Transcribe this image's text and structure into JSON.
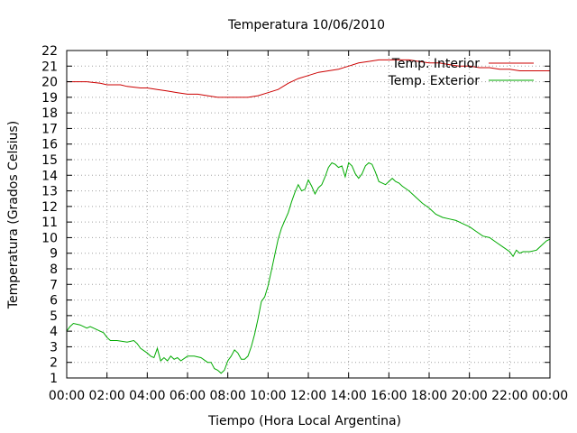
{
  "chart_data": {
    "type": "line",
    "title": "Temperatura 10/06/2010",
    "xlabel": "Tiempo (Hora Local Argentina)",
    "ylabel": "Temperatura (Grados Celsius)",
    "xlim": [
      "00:00",
      "24:00"
    ],
    "ylim": [
      1,
      22
    ],
    "grid": true,
    "legend_position": "top-right",
    "x_tick_labels": [
      "00:00",
      "02:00",
      "04:00",
      "06:00",
      "08:00",
      "10:00",
      "12:00",
      "14:00",
      "16:00",
      "18:00",
      "20:00",
      "22:00",
      "00:00"
    ],
    "y_tick_labels": [
      "1",
      "2",
      "3",
      "4",
      "5",
      "6",
      "7",
      "8",
      "9",
      "10",
      "11",
      "12",
      "13",
      "14",
      "15",
      "16",
      "17",
      "18",
      "19",
      "20",
      "21",
      "22"
    ],
    "series": [
      {
        "name": "Temp. Interior",
        "color": "#cc0000",
        "points": [
          [
            "00:00",
            20.0
          ],
          [
            "00:20",
            20.0
          ],
          [
            "01:00",
            20.0
          ],
          [
            "01:40",
            19.9
          ],
          [
            "02:00",
            19.8
          ],
          [
            "02:40",
            19.8
          ],
          [
            "03:00",
            19.7
          ],
          [
            "03:40",
            19.6
          ],
          [
            "04:00",
            19.6
          ],
          [
            "04:30",
            19.5
          ],
          [
            "05:00",
            19.4
          ],
          [
            "05:30",
            19.3
          ],
          [
            "06:00",
            19.2
          ],
          [
            "06:30",
            19.2
          ],
          [
            "07:00",
            19.1
          ],
          [
            "07:30",
            19.0
          ],
          [
            "08:00",
            19.0
          ],
          [
            "08:30",
            19.0
          ],
          [
            "09:00",
            19.0
          ],
          [
            "09:30",
            19.1
          ],
          [
            "10:00",
            19.3
          ],
          [
            "10:30",
            19.5
          ],
          [
            "11:00",
            19.9
          ],
          [
            "11:30",
            20.2
          ],
          [
            "12:00",
            20.4
          ],
          [
            "12:30",
            20.6
          ],
          [
            "13:00",
            20.7
          ],
          [
            "13:30",
            20.8
          ],
          [
            "14:00",
            21.0
          ],
          [
            "14:30",
            21.2
          ],
          [
            "15:00",
            21.3
          ],
          [
            "15:30",
            21.4
          ],
          [
            "16:00",
            21.4
          ],
          [
            "16:30",
            21.4
          ],
          [
            "17:00",
            21.4
          ],
          [
            "17:30",
            21.3
          ],
          [
            "18:00",
            21.2
          ],
          [
            "18:30",
            21.2
          ],
          [
            "19:00",
            21.1
          ],
          [
            "19:30",
            21.0
          ],
          [
            "20:00",
            21.0
          ],
          [
            "20:30",
            20.9
          ],
          [
            "21:00",
            20.9
          ],
          [
            "21:30",
            20.8
          ],
          [
            "22:00",
            20.8
          ],
          [
            "22:30",
            20.7
          ],
          [
            "23:00",
            20.7
          ],
          [
            "24:00",
            20.7
          ]
        ]
      },
      {
        "name": "Temp. Exterior",
        "color": "#00aa00",
        "points": [
          [
            "00:00",
            4.0
          ],
          [
            "00:10",
            4.3
          ],
          [
            "00:20",
            4.5
          ],
          [
            "00:40",
            4.4
          ],
          [
            "01:00",
            4.2
          ],
          [
            "01:10",
            4.3
          ],
          [
            "01:30",
            4.1
          ],
          [
            "01:50",
            3.9
          ],
          [
            "02:00",
            3.6
          ],
          [
            "02:10",
            3.4
          ],
          [
            "02:30",
            3.4
          ],
          [
            "03:00",
            3.3
          ],
          [
            "03:20",
            3.4
          ],
          [
            "03:30",
            3.2
          ],
          [
            "03:40",
            2.9
          ],
          [
            "04:00",
            2.6
          ],
          [
            "04:10",
            2.4
          ],
          [
            "04:20",
            2.3
          ],
          [
            "04:30",
            2.9
          ],
          [
            "04:40",
            2.1
          ],
          [
            "04:50",
            2.3
          ],
          [
            "05:00",
            2.1
          ],
          [
            "05:10",
            2.4
          ],
          [
            "05:20",
            2.2
          ],
          [
            "05:30",
            2.3
          ],
          [
            "05:40",
            2.1
          ],
          [
            "06:00",
            2.4
          ],
          [
            "06:20",
            2.4
          ],
          [
            "06:40",
            2.3
          ],
          [
            "07:00",
            2.0
          ],
          [
            "07:10",
            2.0
          ],
          [
            "07:20",
            1.6
          ],
          [
            "07:30",
            1.5
          ],
          [
            "07:40",
            1.3
          ],
          [
            "07:50",
            1.5
          ],
          [
            "08:00",
            2.1
          ],
          [
            "08:10",
            2.4
          ],
          [
            "08:20",
            2.8
          ],
          [
            "08:30",
            2.6
          ],
          [
            "08:40",
            2.2
          ],
          [
            "08:50",
            2.2
          ],
          [
            "09:00",
            2.4
          ],
          [
            "09:10",
            3.0
          ],
          [
            "09:20",
            3.8
          ],
          [
            "09:30",
            4.8
          ],
          [
            "09:40",
            5.9
          ],
          [
            "09:50",
            6.2
          ],
          [
            "10:00",
            6.9
          ],
          [
            "10:10",
            7.9
          ],
          [
            "10:20",
            8.9
          ],
          [
            "10:30",
            9.9
          ],
          [
            "10:40",
            10.6
          ],
          [
            "10:50",
            11.1
          ],
          [
            "11:00",
            11.6
          ],
          [
            "11:10",
            12.3
          ],
          [
            "11:20",
            12.9
          ],
          [
            "11:30",
            13.4
          ],
          [
            "11:40",
            13.0
          ],
          [
            "11:50",
            13.1
          ],
          [
            "12:00",
            13.7
          ],
          [
            "12:10",
            13.3
          ],
          [
            "12:20",
            12.8
          ],
          [
            "12:30",
            13.2
          ],
          [
            "12:40",
            13.4
          ],
          [
            "12:50",
            13.9
          ],
          [
            "13:00",
            14.5
          ],
          [
            "13:10",
            14.8
          ],
          [
            "13:20",
            14.7
          ],
          [
            "13:30",
            14.5
          ],
          [
            "13:40",
            14.6
          ],
          [
            "13:50",
            13.9
          ],
          [
            "14:00",
            14.8
          ],
          [
            "14:10",
            14.6
          ],
          [
            "14:20",
            14.1
          ],
          [
            "14:30",
            13.8
          ],
          [
            "14:40",
            14.1
          ],
          [
            "14:50",
            14.6
          ],
          [
            "15:00",
            14.8
          ],
          [
            "15:10",
            14.7
          ],
          [
            "15:20",
            14.2
          ],
          [
            "15:30",
            13.6
          ],
          [
            "15:40",
            13.5
          ],
          [
            "15:50",
            13.4
          ],
          [
            "16:00",
            13.6
          ],
          [
            "16:10",
            13.8
          ],
          [
            "16:20",
            13.6
          ],
          [
            "16:30",
            13.5
          ],
          [
            "16:40",
            13.3
          ],
          [
            "17:00",
            13.0
          ],
          [
            "17:20",
            12.6
          ],
          [
            "17:40",
            12.2
          ],
          [
            "18:00",
            11.9
          ],
          [
            "18:20",
            11.5
          ],
          [
            "18:40",
            11.3
          ],
          [
            "19:00",
            11.2
          ],
          [
            "19:20",
            11.1
          ],
          [
            "19:40",
            10.9
          ],
          [
            "20:00",
            10.7
          ],
          [
            "20:20",
            10.4
          ],
          [
            "20:40",
            10.1
          ],
          [
            "21:00",
            10.0
          ],
          [
            "21:20",
            9.7
          ],
          [
            "21:40",
            9.4
          ],
          [
            "22:00",
            9.1
          ],
          [
            "22:10",
            8.8
          ],
          [
            "22:20",
            9.2
          ],
          [
            "22:30",
            9.0
          ],
          [
            "22:40",
            9.1
          ],
          [
            "23:00",
            9.1
          ],
          [
            "23:20",
            9.2
          ],
          [
            "23:40",
            9.6
          ],
          [
            "23:50",
            9.8
          ],
          [
            "24:00",
            9.9
          ]
        ]
      }
    ]
  }
}
